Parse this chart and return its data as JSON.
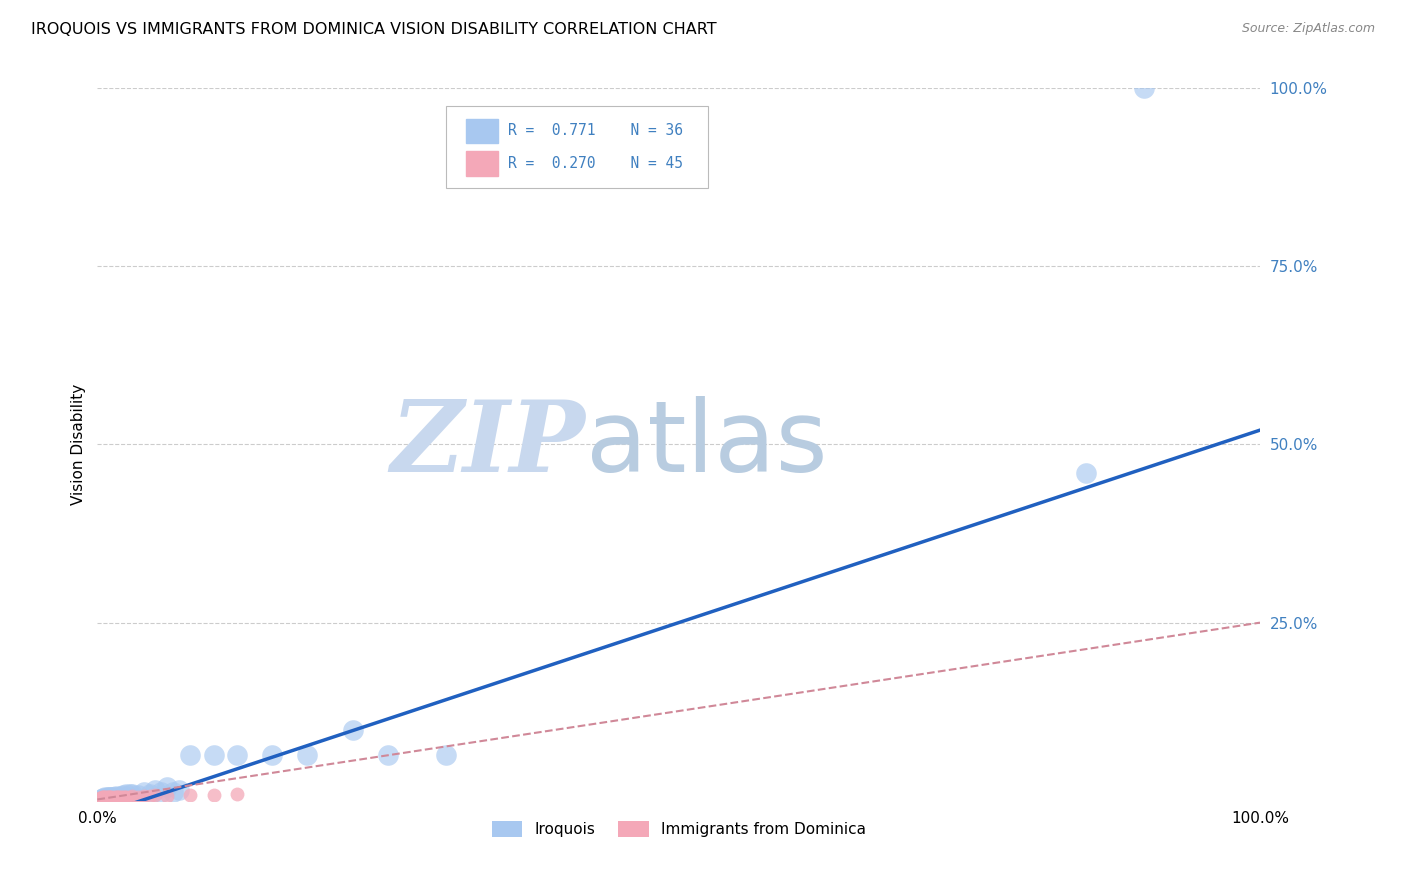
{
  "title": "IROQUOIS VS IMMIGRANTS FROM DOMINICA VISION DISABILITY CORRELATION CHART",
  "source": "Source: ZipAtlas.com",
  "ylabel": "Vision Disability",
  "xlim": [
    0,
    1.0
  ],
  "ylim": [
    0,
    1.0
  ],
  "ytick_vals": [
    0.0,
    0.25,
    0.5,
    0.75,
    1.0
  ],
  "ytick_labels": [
    "",
    "25.0%",
    "50.0%",
    "75.0%",
    "100.0%"
  ],
  "color_iroquois": "#a8c8f0",
  "color_dominica": "#f4a8b8",
  "color_line_iroquois": "#2060c0",
  "color_line_dominica": "#d08898",
  "color_tick_labels": "#4080c0",
  "watermark_zip": "ZIP",
  "watermark_atlas": "atlas",
  "watermark_color_zip": "#c8d8ee",
  "watermark_color_atlas": "#b8cce0",
  "iroquois_x": [
    0.003,
    0.005,
    0.006,
    0.007,
    0.008,
    0.009,
    0.01,
    0.011,
    0.012,
    0.013,
    0.015,
    0.016,
    0.018,
    0.02,
    0.022,
    0.025,
    0.028,
    0.03,
    0.035,
    0.04,
    0.045,
    0.05,
    0.055,
    0.06,
    0.065,
    0.07,
    0.08,
    0.1,
    0.12,
    0.15,
    0.18,
    0.22,
    0.25,
    0.3,
    0.85,
    0.9
  ],
  "iroquois_y": [
    0.003,
    0.004,
    0.003,
    0.005,
    0.004,
    0.006,
    0.005,
    0.004,
    0.006,
    0.005,
    0.005,
    0.007,
    0.006,
    0.007,
    0.008,
    0.01,
    0.009,
    0.01,
    0.008,
    0.012,
    0.01,
    0.015,
    0.012,
    0.02,
    0.013,
    0.015,
    0.065,
    0.065,
    0.065,
    0.065,
    0.065,
    0.1,
    0.065,
    0.065,
    0.46,
    1.0
  ],
  "dominica_x": [
    0.001,
    0.002,
    0.002,
    0.003,
    0.003,
    0.004,
    0.004,
    0.005,
    0.005,
    0.005,
    0.006,
    0.006,
    0.007,
    0.007,
    0.008,
    0.008,
    0.009,
    0.009,
    0.01,
    0.01,
    0.011,
    0.011,
    0.012,
    0.012,
    0.013,
    0.014,
    0.015,
    0.016,
    0.017,
    0.018,
    0.019,
    0.02,
    0.022,
    0.024,
    0.025,
    0.028,
    0.03,
    0.035,
    0.04,
    0.045,
    0.05,
    0.06,
    0.08,
    0.1,
    0.12
  ],
  "dominica_y": [
    0.003,
    0.003,
    0.004,
    0.003,
    0.004,
    0.004,
    0.005,
    0.003,
    0.004,
    0.006,
    0.003,
    0.005,
    0.004,
    0.005,
    0.003,
    0.005,
    0.004,
    0.005,
    0.004,
    0.006,
    0.004,
    0.005,
    0.004,
    0.005,
    0.004,
    0.005,
    0.004,
    0.005,
    0.005,
    0.005,
    0.005,
    0.005,
    0.005,
    0.006,
    0.005,
    0.006,
    0.007,
    0.006,
    0.007,
    0.007,
    0.008,
    0.007,
    0.008,
    0.008,
    0.009
  ],
  "line_iroquois_x0": 0.0,
  "line_iroquois_x1": 1.0,
  "line_iroquois_y0": -0.02,
  "line_iroquois_y1": 0.52,
  "line_dominica_x0": 0.0,
  "line_dominica_x1": 1.0,
  "line_dominica_y0": 0.002,
  "line_dominica_y1": 0.25
}
